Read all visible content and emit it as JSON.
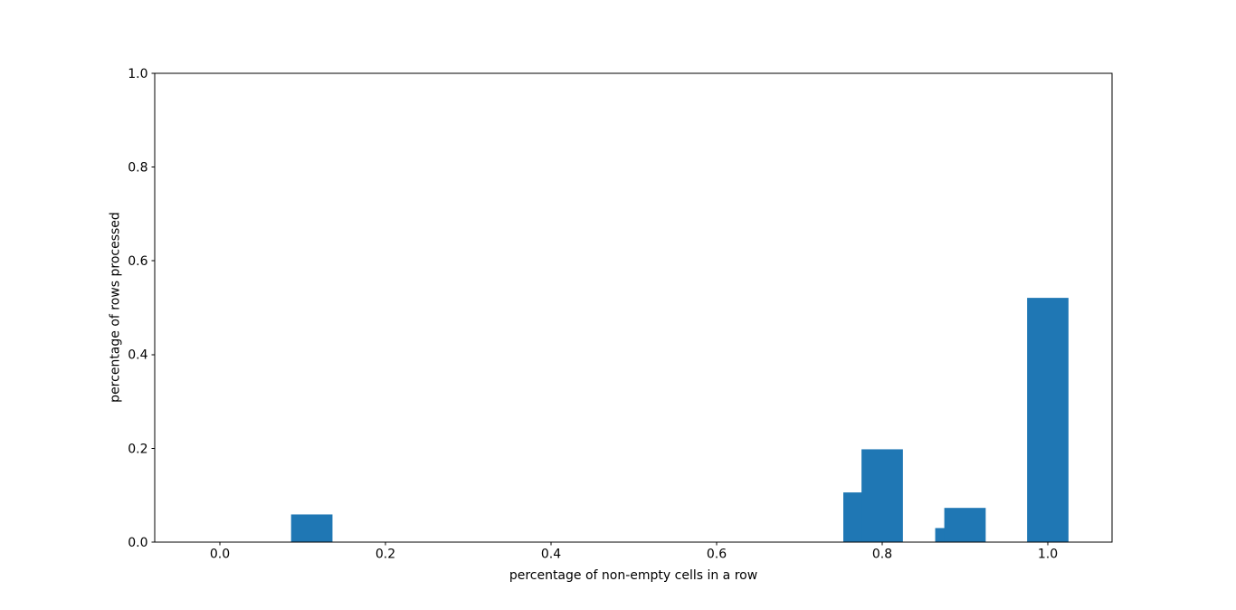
{
  "figure": {
    "background": "#ffffff",
    "spine_color": "#000000",
    "text_color": "#000000"
  },
  "chart_data": {
    "type": "bar",
    "title": "",
    "xlabel": "percentage of non-empty cells in a row",
    "ylabel": "percentage of rows processed",
    "bar_color": "#1f77b4",
    "bar_width": 0.05,
    "bars": [
      {
        "x": 0.111,
        "height": 0.059
      },
      {
        "x": 0.778,
        "height": 0.106
      },
      {
        "x": 0.8,
        "height": 0.198
      },
      {
        "x": 0.889,
        "height": 0.03
      },
      {
        "x": 0.9,
        "height": 0.073
      },
      {
        "x": 1.0,
        "height": 0.521
      }
    ],
    "xlim": [
      -0.0787,
      1.0776
    ],
    "ylim": [
      0,
      1
    ],
    "xticks": {
      "values": [
        0.0,
        0.2,
        0.4,
        0.6,
        0.8,
        1.0
      ],
      "labels": [
        "0.0",
        "0.2",
        "0.4",
        "0.6",
        "0.8",
        "1.0"
      ]
    },
    "yticks": {
      "values": [
        0.0,
        0.2,
        0.4,
        0.6,
        0.8,
        1.0
      ],
      "labels": [
        "0.0",
        "0.2",
        "0.4",
        "0.6",
        "0.8",
        "1.0"
      ]
    },
    "grid": false,
    "legend": false
  }
}
